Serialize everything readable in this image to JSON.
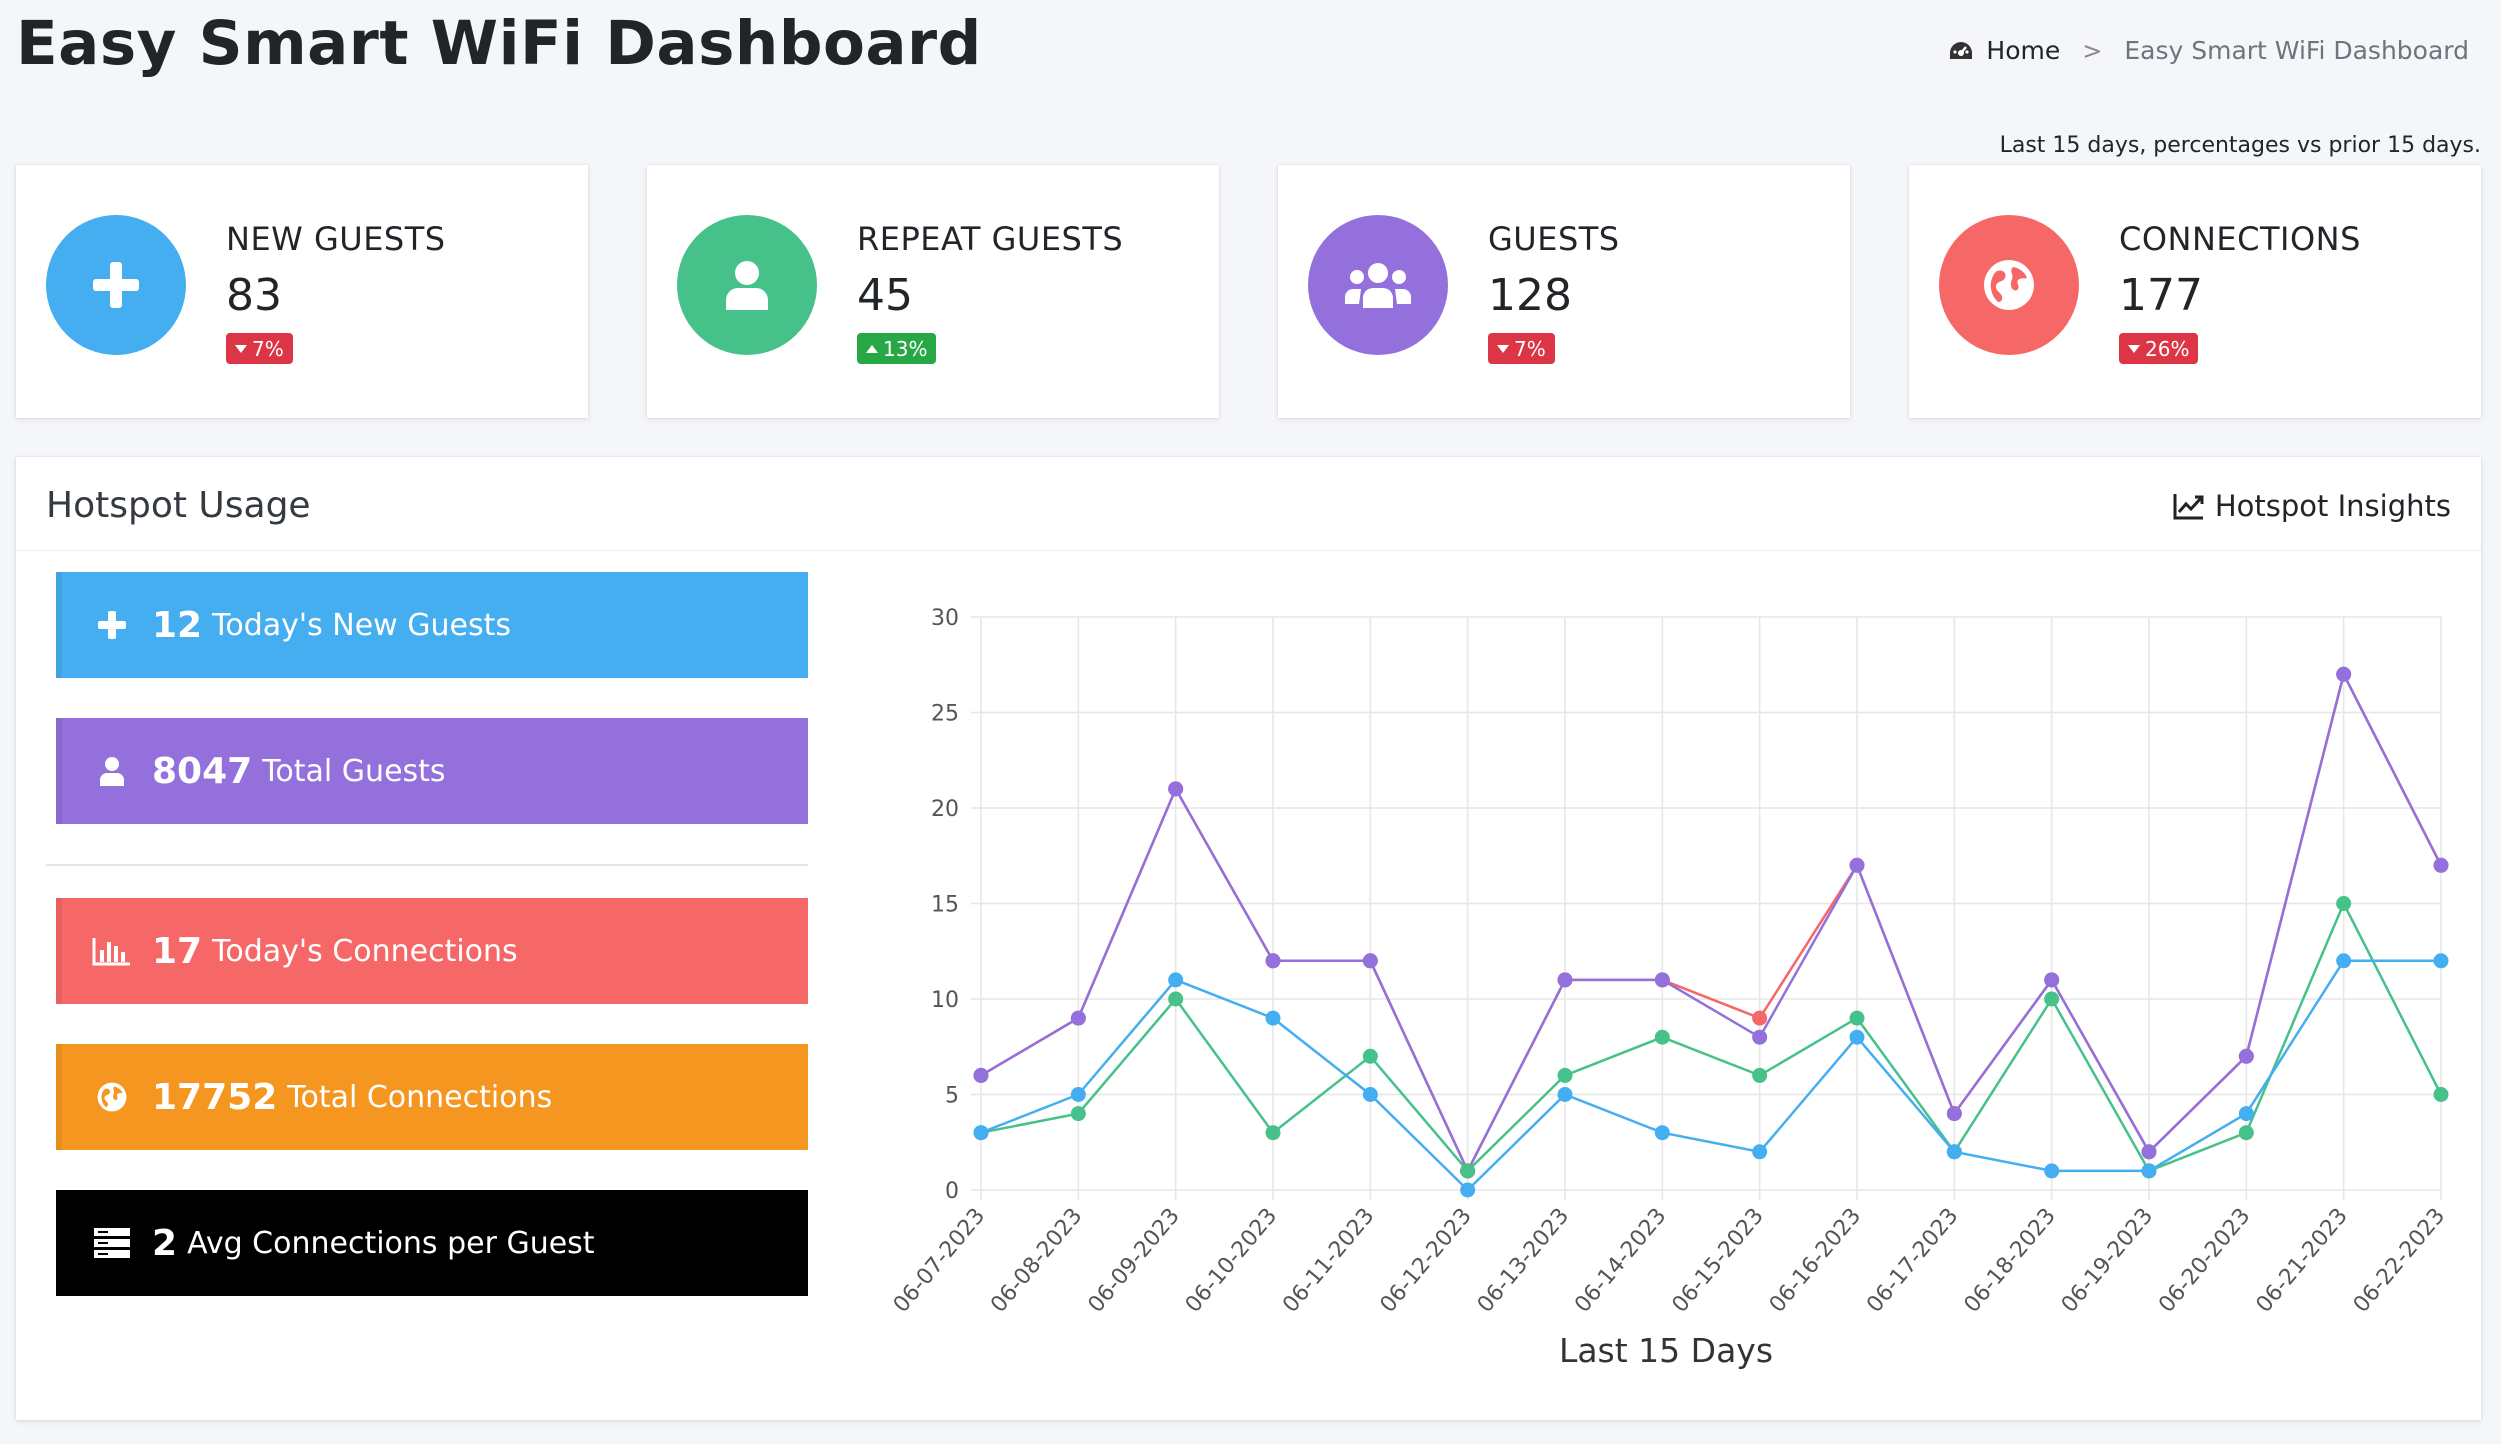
{
  "page": {
    "title": "Easy Smart WiFi Dashboard",
    "breadcrumb": {
      "home": "Home",
      "separator": ">",
      "current": "Easy Smart WiFi Dashboard"
    },
    "range_note": "Last 15 days, percentages vs prior 15 days."
  },
  "info_boxes": [
    {
      "label": "NEW GUESTS",
      "value": "83",
      "badge": "7%",
      "trend": "down",
      "color": "#45aef0",
      "icon": "plus-icon"
    },
    {
      "label": "REPEAT GUESTS",
      "value": "45",
      "badge": "13%",
      "trend": "up",
      "color": "#45c189",
      "icon": "user-icon"
    },
    {
      "label": "GUESTS",
      "value": "128",
      "badge": "7%",
      "trend": "down",
      "color": "#9370db",
      "icon": "users-icon"
    },
    {
      "label": "CONNECTIONS",
      "value": "177",
      "badge": "26%",
      "trend": "down",
      "color": "#f66767",
      "icon": "globe-icon"
    }
  ],
  "hotspot": {
    "title": "Hotspot Usage",
    "insights_link": "Hotspot Insights",
    "stats": [
      {
        "number": "12",
        "label": "Today's New Guests",
        "color": "#45aef0",
        "icon": "plus-icon"
      },
      {
        "number": "8047",
        "label": "Total Guests",
        "color": "#9370db",
        "icon": "user-icon"
      },
      {
        "number": "17",
        "label": "Today's Connections",
        "color": "#f66767",
        "icon": "bar-chart-icon"
      },
      {
        "number": "17752",
        "label": "Total Connections",
        "color": "#f4961f",
        "icon": "globe-icon"
      },
      {
        "number": "2",
        "label": "Avg Connections per Guest",
        "color": "#000000",
        "icon": "server-icon"
      }
    ]
  },
  "chart_data": {
    "type": "line",
    "title": "",
    "xlabel": "Last 15 Days",
    "ylabel": "",
    "ylim": [
      0,
      30
    ],
    "yticks": [
      0,
      5,
      10,
      15,
      20,
      25,
      30
    ],
    "grid": true,
    "legend": "none",
    "categories": [
      "06-07-2023",
      "06-08-2023",
      "06-09-2023",
      "06-10-2023",
      "06-11-2023",
      "06-12-2023",
      "06-13-2023",
      "06-14-2023",
      "06-15-2023",
      "06-16-2023",
      "06-17-2023",
      "06-18-2023",
      "06-19-2023",
      "06-20-2023",
      "06-21-2023",
      "06-22-2023"
    ],
    "series": [
      {
        "color": "#f66767",
        "values": [
          6,
          9,
          21,
          12,
          12,
          1,
          11,
          11,
          9,
          17,
          4,
          11,
          2,
          7,
          27,
          17
        ]
      },
      {
        "color": "#9370db",
        "values": [
          6,
          9,
          21,
          12,
          12,
          1,
          11,
          11,
          8,
          17,
          4,
          11,
          2,
          7,
          27,
          17
        ]
      },
      {
        "color": "#45c189",
        "values": [
          3,
          4,
          10,
          3,
          7,
          1,
          6,
          8,
          6,
          9,
          2,
          10,
          1,
          3,
          15,
          5
        ]
      },
      {
        "color": "#45aef0",
        "values": [
          3,
          5,
          11,
          9,
          5,
          0,
          5,
          3,
          2,
          8,
          2,
          1,
          1,
          4,
          12,
          12
        ]
      }
    ]
  }
}
